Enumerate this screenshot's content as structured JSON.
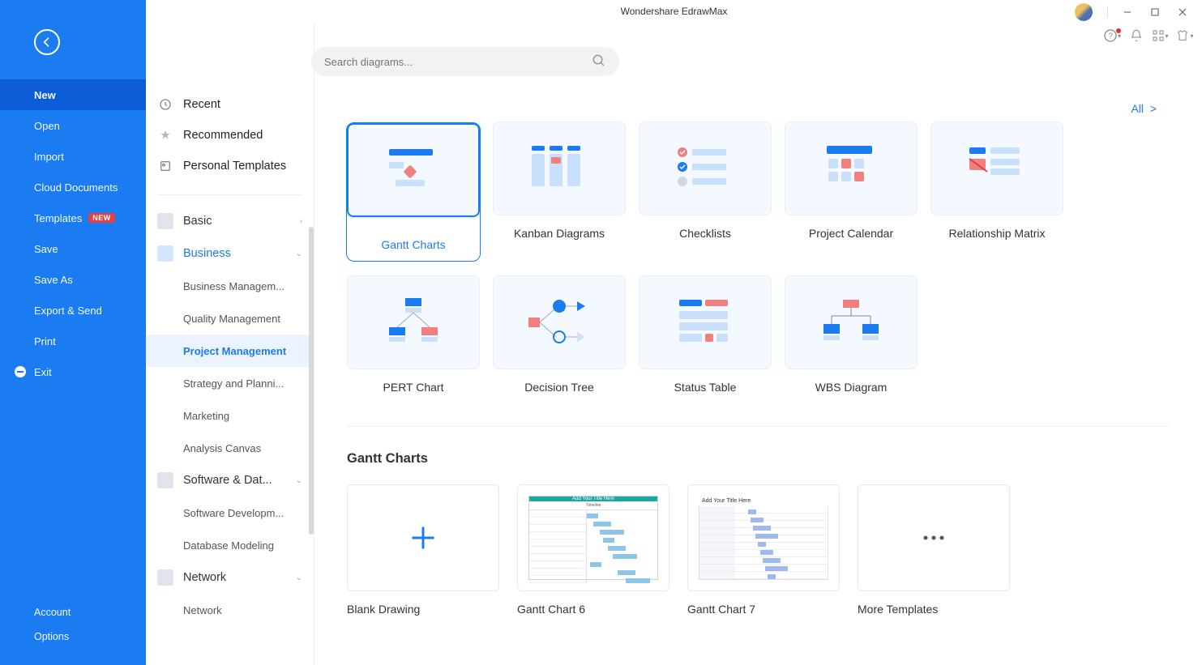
{
  "app": {
    "title": "Wondershare EdrawMax"
  },
  "search": {
    "placeholder": "Search diagrams..."
  },
  "leftnav": {
    "items": [
      {
        "label": "New",
        "selected": true
      },
      {
        "label": "Open"
      },
      {
        "label": "Import"
      },
      {
        "label": "Cloud Documents"
      },
      {
        "label": "Templates",
        "badge": "NEW"
      },
      {
        "label": "Save"
      },
      {
        "label": "Save As"
      },
      {
        "label": "Export & Send"
      },
      {
        "label": "Print"
      },
      {
        "label": "Exit",
        "exit": true
      }
    ],
    "bottom": [
      {
        "label": "Account"
      },
      {
        "label": "Options"
      }
    ]
  },
  "toppanel": {
    "recent": "Recent",
    "recommended": "Recommended",
    "personal": "Personal Templates"
  },
  "categories": [
    {
      "label": "Basic",
      "expanded": false,
      "chev": "›"
    },
    {
      "label": "Business",
      "expanded": true,
      "active": true,
      "chev": "⌄",
      "subs": [
        {
          "label": "Business Managem..."
        },
        {
          "label": "Quality Management"
        },
        {
          "label": "Project Management",
          "active": true
        },
        {
          "label": "Strategy and Planni..."
        },
        {
          "label": "Marketing"
        },
        {
          "label": "Analysis Canvas"
        }
      ]
    },
    {
      "label": "Software & Dat...",
      "expanded": true,
      "chev": "⌄",
      "subs": [
        {
          "label": "Software Developm..."
        },
        {
          "label": "Database Modeling"
        }
      ]
    },
    {
      "label": "Network",
      "expanded": true,
      "chev": "⌄",
      "subs": [
        {
          "label": "Network"
        }
      ]
    }
  ],
  "all_label": "All",
  "cards": [
    {
      "label": "Gantt Charts",
      "selected": true,
      "icon": "gantt"
    },
    {
      "label": "Kanban Diagrams",
      "icon": "kanban"
    },
    {
      "label": "Checklists",
      "icon": "checklist"
    },
    {
      "label": "Project Calendar",
      "icon": "calendar"
    },
    {
      "label": "Relationship Matrix",
      "icon": "matrix"
    },
    {
      "label": "PERT Chart",
      "icon": "pert"
    },
    {
      "label": "Decision Tree",
      "icon": "dtree"
    },
    {
      "label": "Status Table",
      "icon": "status"
    },
    {
      "label": "WBS Diagram",
      "icon": "wbs"
    }
  ],
  "section": {
    "title": "Gantt Charts"
  },
  "templates": [
    {
      "label": "Blank Drawing",
      "kind": "blank"
    },
    {
      "label": "Gantt Chart 6",
      "kind": "gantt-teal",
      "title": "Add Your Title Here"
    },
    {
      "label": "Gantt Chart 7",
      "kind": "gantt-purple",
      "title": "Add Your Title Here"
    },
    {
      "label": "More Templates",
      "kind": "more"
    }
  ],
  "colors": {
    "primary": "#1a7cf0",
    "primary_dark": "#0c5cd6",
    "accent_red": "#e84040",
    "thumb_bg": "#f4f8ff",
    "soft_blue": "#c9e0fb",
    "mid_blue": "#1a7cf0",
    "soft_red": "#f08080"
  }
}
